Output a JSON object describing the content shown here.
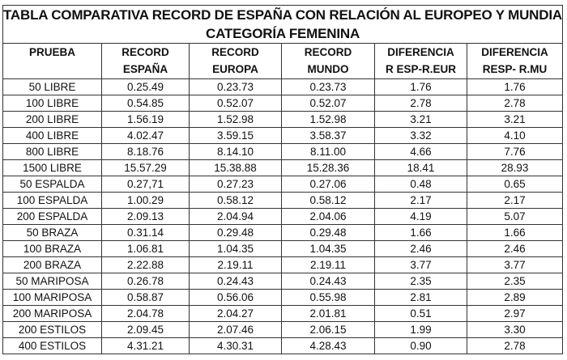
{
  "table": {
    "title_line1": "TABLA COMPARATIVA RECORD DE ESPAÑA CON RELACIÓN AL EUROPEO Y MUNDIAL",
    "title_line2": "CATEGORÍA FEMENINA",
    "headers": [
      {
        "line1": "PRUEBA",
        "line2": ""
      },
      {
        "line1": "RECORD",
        "line2": "ESPAÑA"
      },
      {
        "line1": "RECORD",
        "line2": "EUROPA"
      },
      {
        "line1": "RECORD",
        "line2": "MUNDO"
      },
      {
        "line1": "DIFERENCIA",
        "line2": "R ESP-R.EUR"
      },
      {
        "line1": "DIFERENCIA",
        "line2": "RESP- R.MU"
      }
    ],
    "rows": [
      [
        "50 LIBRE",
        "0.25.49",
        "0.23.73",
        "0.23.73",
        "1.76",
        "1.76"
      ],
      [
        "100 LIBRE",
        "0.54.85",
        "0.52.07",
        "0.52.07",
        "2.78",
        "2.78"
      ],
      [
        "200 LIBRE",
        "1.56.19",
        "1.52.98",
        "1.52.98",
        "3.21",
        "3.21"
      ],
      [
        "400 LIBRE",
        "4.02.47",
        "3.59.15",
        "3.58.37",
        "3.32",
        "4.10"
      ],
      [
        "800 LIBRE",
        "8.18.76",
        "8.14.10",
        "8.11.00",
        "4.66",
        "7.76"
      ],
      [
        "1500 LIBRE",
        "15.57.29",
        "15.38.88",
        "15.28.36",
        "18.41",
        "28.93"
      ],
      [
        "50 ESPALDA",
        "0.27,71",
        "0.27.23",
        "0.27.06",
        "0.48",
        "0.65"
      ],
      [
        "100 ESPALDA",
        "1.00.29",
        "0.58.12",
        "0.58.12",
        "2.17",
        "2.17"
      ],
      [
        "200 ESPALDA",
        "2.09.13",
        "2.04.94",
        "2.04.06",
        "4.19",
        "5.07"
      ],
      [
        "50 BRAZA",
        "0.31.14",
        "0.29.48",
        "0.29.48",
        "1.66",
        "1.66"
      ],
      [
        "100 BRAZA",
        "1.06.81",
        "1.04.35",
        "1.04.35",
        "2.46",
        "2.46"
      ],
      [
        "200 BRAZA",
        "2.22.88",
        "2.19.11",
        "2.19.11",
        "3.77",
        "3.77"
      ],
      [
        "50 MARIPOSA",
        "0.26.78",
        "0.24.43",
        "0.24.43",
        "2.35",
        "2.35"
      ],
      [
        "100 MARIPOSA",
        "0.58.87",
        "0.56.06",
        "0.55.98",
        "2.81",
        "2.89"
      ],
      [
        "200 MARIPOSA",
        "2.04.78",
        "2.04.27",
        "2.01.81",
        "0.51",
        "2.97"
      ],
      [
        "200 ESTILOS",
        "2.09.45",
        "2.07.46",
        "2.06.15",
        "1.99",
        "3.30"
      ],
      [
        "400 ESTILOS",
        "4.31.21",
        "4.30.31",
        "4.28.43",
        "0.90",
        "2.78"
      ]
    ]
  }
}
